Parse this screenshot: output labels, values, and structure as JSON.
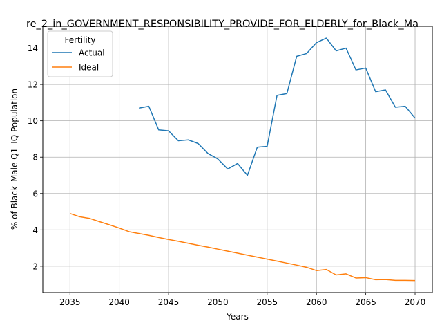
{
  "chart_data": {
    "type": "line",
    "title": "re_2_in_GOVERNMENT_RESPONSIBILITY_PROVIDE_FOR_ELDERLY_for_Black_Ma",
    "xlabel": "Years",
    "ylabel": "% of Black_Male Q1_IQ Population",
    "xlim": [
      2032.25,
      2071.75
    ],
    "ylim": [
      0.55,
      15.2
    ],
    "xticks": [
      2035,
      2040,
      2045,
      2050,
      2055,
      2060,
      2065,
      2070
    ],
    "yticks": [
      2,
      4,
      6,
      8,
      10,
      12,
      14
    ],
    "grid": true,
    "legend": {
      "title": "Fertility",
      "placement": "top-left"
    },
    "series": [
      {
        "name": "Actual",
        "color": "#1f77b4",
        "x": [
          2042,
          2043,
          2044,
          2045,
          2046,
          2047,
          2048,
          2049,
          2050,
          2051,
          2052,
          2053,
          2054,
          2055,
          2056,
          2057,
          2058,
          2059,
          2060,
          2061,
          2062,
          2063,
          2064,
          2065,
          2066,
          2067,
          2068,
          2069,
          2070
        ],
        "values": [
          10.7,
          10.8,
          9.5,
          9.45,
          8.9,
          8.95,
          8.75,
          8.2,
          7.9,
          7.35,
          7.65,
          7.0,
          8.55,
          8.6,
          11.4,
          11.5,
          13.55,
          13.7,
          14.3,
          14.55,
          13.85,
          14.0,
          12.8,
          12.9,
          11.6,
          11.7,
          10.75,
          10.8,
          10.15
        ]
      },
      {
        "name": "Ideal",
        "color": "#ff7f0e",
        "x": [
          2035,
          2036,
          2037,
          2038,
          2039,
          2040,
          2041,
          2042,
          2043,
          2044,
          2045,
          2046,
          2047,
          2048,
          2049,
          2050,
          2051,
          2052,
          2053,
          2054,
          2055,
          2056,
          2057,
          2058,
          2059,
          2060,
          2061,
          2062,
          2063,
          2064,
          2065,
          2066,
          2067,
          2068,
          2069,
          2070
        ],
        "values": [
          4.9,
          4.72,
          4.63,
          4.45,
          4.28,
          4.1,
          3.9,
          3.8,
          3.7,
          3.58,
          3.47,
          3.37,
          3.26,
          3.15,
          3.05,
          2.94,
          2.83,
          2.72,
          2.61,
          2.5,
          2.39,
          2.28,
          2.17,
          2.06,
          1.94,
          1.76,
          1.82,
          1.52,
          1.58,
          1.35,
          1.37,
          1.26,
          1.27,
          1.22,
          1.22,
          1.21
        ]
      }
    ]
  }
}
